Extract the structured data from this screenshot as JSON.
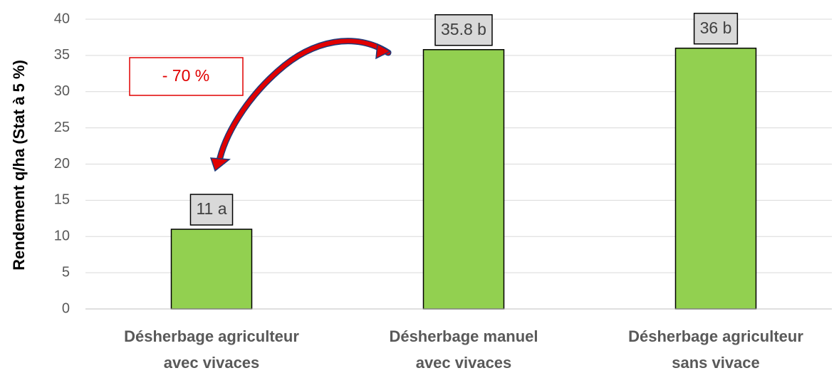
{
  "chart_data": {
    "type": "bar",
    "ylabel": "Rendement q/ha (Stat à 5 %)",
    "annotation": "- 70 %",
    "categories": [
      [
        "Désherbage agriculteur",
        "avec vivaces"
      ],
      [
        "Désherbage manuel",
        "avec vivaces"
      ],
      [
        "Désherbage agriculteur",
        "sans vivace"
      ]
    ],
    "values": [
      11,
      35.8,
      36
    ],
    "value_labels": [
      "11 a",
      "35.8 b",
      "36 b"
    ],
    "color": "#92d050",
    "ylim": [
      0,
      40
    ],
    "yticks": [
      0,
      5,
      10,
      15,
      20,
      25,
      30,
      35,
      40
    ],
    "grid": true
  }
}
